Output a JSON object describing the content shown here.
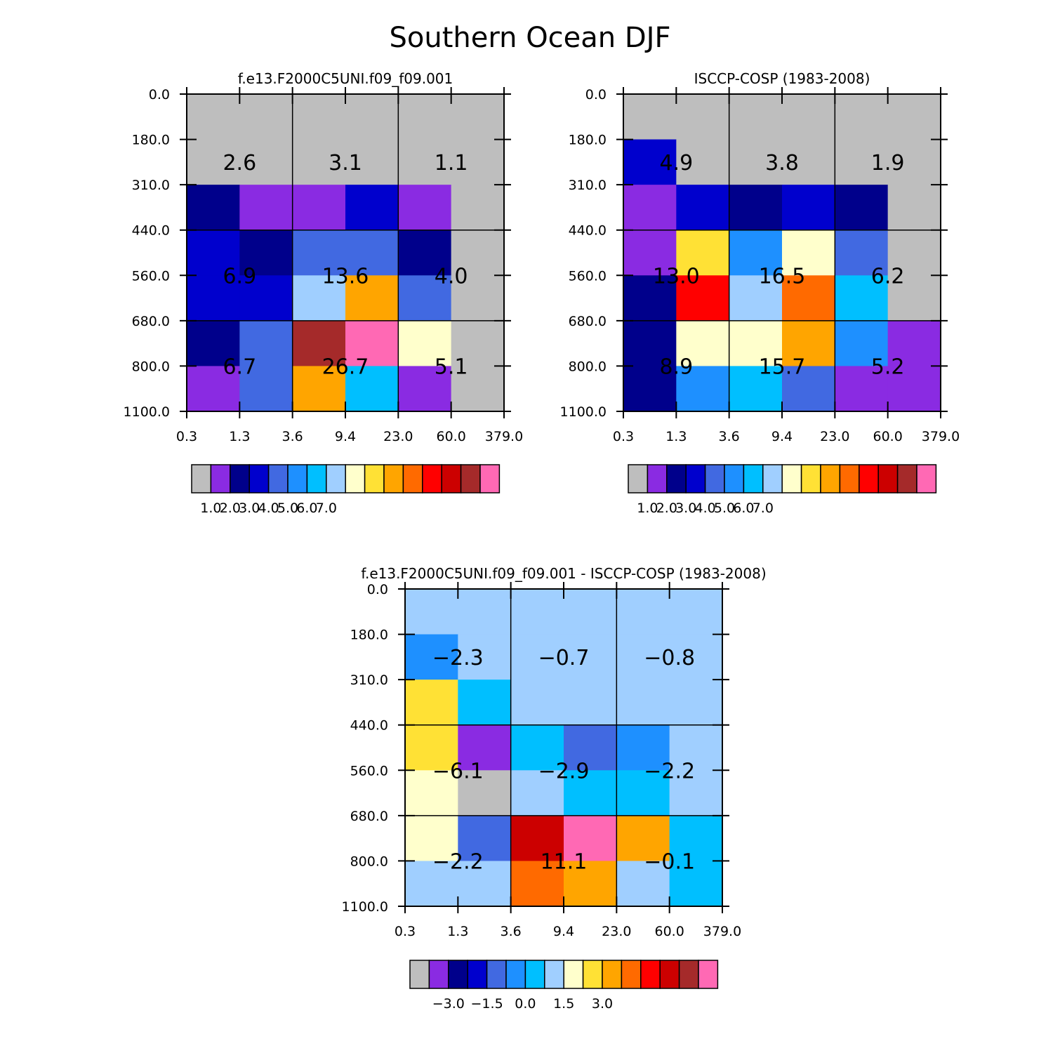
{
  "figure": {
    "title": "Southern Ocean DJF"
  },
  "colors": [
    "#BEBEBE",
    "#8A2BE2",
    "#00008B",
    "#0000CD",
    "#4169E1",
    "#1E90FF",
    "#00BFFF",
    "#A0CFFF",
    "#FFFFCC",
    "#FFE135",
    "#FFA500",
    "#FF6A00",
    "#FF0000",
    "#CC0000",
    "#A52A2A",
    "#FF69B4"
  ],
  "chart_data": [
    {
      "type": "heatmap",
      "title": "f.e13.F2000C5UNI.f09_f09.001",
      "x_ticks": [
        "0.3",
        "1.3",
        "3.6",
        "9.4",
        "23.0",
        "60.0",
        "379.0"
      ],
      "y_ticks": [
        "0.0",
        "180.0",
        "310.0",
        "440.0",
        "560.0",
        "680.0",
        "800.0",
        "1100.0"
      ],
      "cell_color_index": [
        [
          0,
          0,
          0,
          0,
          0,
          0
        ],
        [
          0,
          0,
          0,
          0,
          0,
          0
        ],
        [
          2,
          1,
          1,
          3,
          1,
          0
        ],
        [
          3,
          2,
          4,
          4,
          2,
          0
        ],
        [
          3,
          3,
          7,
          10,
          4,
          0
        ],
        [
          2,
          4,
          14,
          15,
          8,
          0
        ],
        [
          1,
          4,
          10,
          6,
          1,
          0
        ]
      ],
      "block_values": [
        [
          "2.6",
          "3.1",
          "1.1"
        ],
        [
          "6.9",
          "13.6",
          "4.0"
        ],
        [
          "6.7",
          "26.7",
          "5.1"
        ]
      ],
      "colorbar": {
        "labels": [
          "1.0",
          "2.0",
          "3.0",
          "4.0",
          "5.0",
          "6.0",
          "7.0"
        ]
      }
    },
    {
      "type": "heatmap",
      "title": "ISCCP-COSP (1983-2008)",
      "x_ticks": [
        "0.3",
        "1.3",
        "3.6",
        "9.4",
        "23.0",
        "60.0",
        "379.0"
      ],
      "y_ticks": [
        "0.0",
        "180.0",
        "310.0",
        "440.0",
        "560.0",
        "680.0",
        "800.0",
        "1100.0"
      ],
      "cell_color_index": [
        [
          0,
          0,
          0,
          0,
          0,
          0
        ],
        [
          3,
          0,
          0,
          0,
          0,
          0
        ],
        [
          1,
          3,
          2,
          3,
          2,
          0
        ],
        [
          1,
          9,
          5,
          8,
          4,
          0
        ],
        [
          2,
          12,
          7,
          11,
          6,
          0
        ],
        [
          2,
          8,
          8,
          10,
          5,
          1
        ],
        [
          2,
          5,
          6,
          4,
          1,
          1
        ]
      ],
      "block_values": [
        [
          "4.9",
          "3.8",
          "1.9"
        ],
        [
          "13.0",
          "16.5",
          "6.2"
        ],
        [
          "8.9",
          "15.7",
          "5.2"
        ]
      ],
      "colorbar": {
        "labels": [
          "1.0",
          "2.0",
          "3.0",
          "4.0",
          "5.0",
          "6.0",
          "7.0"
        ]
      }
    },
    {
      "type": "heatmap",
      "title": "f.e13.F2000C5UNI.f09_f09.001 - ISCCP-COSP (1983-2008)",
      "x_ticks": [
        "0.3",
        "1.3",
        "3.6",
        "9.4",
        "23.0",
        "60.0",
        "379.0"
      ],
      "y_ticks": [
        "0.0",
        "180.0",
        "310.0",
        "440.0",
        "560.0",
        "680.0",
        "800.0",
        "1100.0"
      ],
      "cell_color_index": [
        [
          7,
          7,
          7,
          7,
          7,
          7
        ],
        [
          5,
          7,
          7,
          7,
          7,
          7
        ],
        [
          9,
          6,
          7,
          7,
          7,
          7
        ],
        [
          9,
          1,
          6,
          4,
          5,
          7
        ],
        [
          8,
          0,
          7,
          6,
          6,
          7
        ],
        [
          8,
          4,
          13,
          15,
          10,
          6
        ],
        [
          7,
          7,
          11,
          10,
          7,
          6
        ]
      ],
      "block_values": [
        [
          "-2.3",
          "-0.7",
          "-0.8"
        ],
        [
          "-6.1",
          "-2.9",
          "-2.2"
        ],
        [
          "-2.2",
          "11.1",
          "-0.1"
        ]
      ],
      "colorbar": {
        "labels": [
          "-3.0",
          "-1.5",
          "0.0",
          "1.5",
          "3.0"
        ]
      }
    }
  ]
}
